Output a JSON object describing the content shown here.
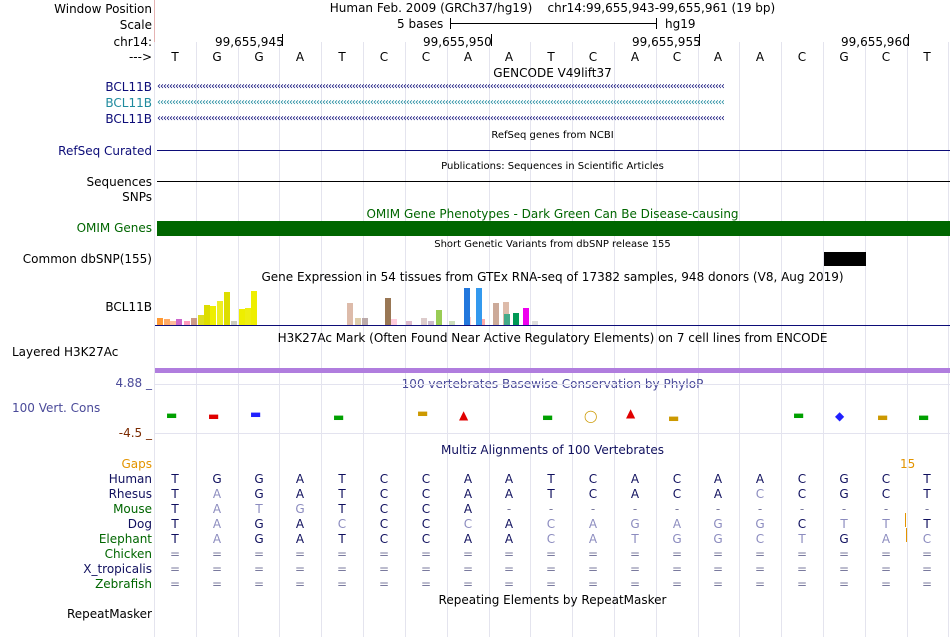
{
  "labels": {
    "window_position": "Window Position",
    "scale": "Scale",
    "chrom": "chr14:",
    "strand": "--->",
    "gencode_1": "BCL11B",
    "gencode_2": "BCL11B",
    "gencode_3": "BCL11B",
    "refseq": "RefSeq Curated",
    "sequences": "Sequences",
    "snps": "SNPs",
    "omim": "OMIM Genes",
    "dbsnp": "Common dbSNP(155)",
    "gtex": "BCL11B",
    "h3k27ac": "Layered H3K27Ac",
    "cons_max": "4.88 _",
    "cons_name": "100 Vert. Cons",
    "cons_min": "-4.5 _",
    "gaps": "Gaps",
    "human": "Human",
    "rhesus": "Rhesus",
    "mouse": "Mouse",
    "dog": "Dog",
    "elephant": "Elephant",
    "chicken": "Chicken",
    "xtrop": "X_tropicalis",
    "zebrafish": "Zebrafish",
    "repeatmasker": "RepeatMasker"
  },
  "header": {
    "assembly": "Human Feb. 2009 (GRCh37/hg19)",
    "position": "chr14:99,655,943-99,655,961 (19 bp)",
    "scale_text": "5 bases",
    "db": "hg19",
    "coords": [
      "99,655,945",
      "99,655,950",
      "99,655,955",
      "99,655,960"
    ]
  },
  "sequence": [
    "T",
    "G",
    "G",
    "A",
    "T",
    "C",
    "C",
    "A",
    "A",
    "T",
    "C",
    "A",
    "C",
    "A",
    "A",
    "C",
    "G",
    "C",
    "T"
  ],
  "titles": {
    "gencode": "GENCODE V49lift37",
    "refseq": "RefSeq genes from NCBI",
    "publications": "Publications: Sequences in Scientific Articles",
    "omim": "OMIM Gene Phenotypes - Dark Green Can Be Disease-causing",
    "dbsnp": "Short Genetic Variants from dbSNP release 155",
    "gtex": "Gene Expression in 54 tissues from GTEx RNA-seq of 17382 samples, 948 donors (V8, Aug 2019)",
    "h3k27ac": "H3K27Ac Mark (Often Found Near Active Regulatory Elements) on 7 cell lines from ENCODE",
    "conservation": "100 vertebrates Basewise Conservation by PhyloP",
    "multiz": "Multiz Alignments of 100 Vertebrates",
    "repeatmasker": "Repeating Elements by RepeatMasker"
  },
  "gaps_value": "15",
  "alignment": {
    "rhesus": [
      "T",
      "A",
      "G",
      "A",
      "T",
      "C",
      "C",
      "A",
      "A",
      "T",
      "C",
      "A",
      "C",
      "A",
      "C",
      "C",
      "G",
      "C",
      "T"
    ],
    "mouse": [
      "T",
      "A",
      "T",
      "G",
      "T",
      "C",
      "C",
      "A",
      "-",
      "-",
      "-",
      "-",
      "-",
      "-",
      "-",
      "-",
      "-",
      "-",
      "-"
    ],
    "dog": [
      "T",
      "A",
      "G",
      "A",
      "C",
      "C",
      "C",
      "C",
      "A",
      "C",
      "A",
      "G",
      "A",
      "G",
      "G",
      "C",
      "T",
      "T",
      "T"
    ],
    "elephant": [
      "T",
      "A",
      "G",
      "A",
      "T",
      "C",
      "C",
      "A",
      "A",
      "C",
      "A",
      "T",
      "G",
      "G",
      "C",
      "T",
      "G",
      "A",
      "C"
    ],
    "chicken": [
      "=",
      "=",
      "=",
      "=",
      "=",
      "=",
      "=",
      "=",
      "=",
      "=",
      "=",
      "=",
      "=",
      "=",
      "=",
      "=",
      "=",
      "=",
      "="
    ],
    "xtrop": [
      "=",
      "=",
      "=",
      "=",
      "=",
      "=",
      "=",
      "=",
      "=",
      "=",
      "=",
      "=",
      "=",
      "=",
      "=",
      "=",
      "=",
      "=",
      "="
    ],
    "zebrafish": [
      "=",
      "=",
      "=",
      "=",
      "=",
      "=",
      "=",
      "=",
      "=",
      "=",
      "=",
      "=",
      "=",
      "=",
      "=",
      "=",
      "=",
      "=",
      "="
    ]
  },
  "gtex_values": [
    0.2,
    0.15,
    0.1,
    0.15,
    0.12,
    0.2,
    0.28,
    0.55,
    0.5,
    0.65,
    0.9,
    0.1,
    0.42,
    0.45,
    0.92,
    0.6,
    0.18,
    0.2,
    0.72,
    0.15,
    0.12,
    0.2,
    0.12,
    0.4,
    0.1,
    0.22,
    0.15,
    1.0,
    1.0,
    0.6,
    0.62,
    0.3,
    0.32,
    0.45,
    0.1
  ],
  "gtex_colors": [
    "#ff9933",
    "#ffaa66",
    "#ffbb99",
    "#cc66cc",
    "#ff99bb",
    "#cc9988",
    "#dddd22",
    "#dddd00",
    "#eeee00",
    "#eeee22",
    "#dddd00",
    "#ccccbb",
    "#eeee00",
    "#eeee11",
    "#eeee00",
    "#ddbbaa",
    "#ddccaa",
    "#bbaaaa",
    "#997755",
    "#ffccdd",
    "#ddbbcc",
    "#ddcccc",
    "#ccbbcc",
    "#99cc55",
    "#ccddbb",
    "#ffcccc",
    "#ffaaaa",
    "#2277dd",
    "#3399ee",
    "#ccaa99",
    "#ddbbaa",
    "#44aa88",
    "#009955",
    "#ee00ee",
    "#dddddd"
  ],
  "colors": {
    "gencode_1": "#0c0c78",
    "gencode_2": "#1f8a9e",
    "gencode_3": "#0c0c78",
    "refseq": "#0c0c78",
    "omim": "#006600",
    "conservation": "#4a4a99",
    "gaps": "#e39400",
    "alignment_title": "#10105e",
    "h3k27ac_bar": "#b07dde"
  }
}
